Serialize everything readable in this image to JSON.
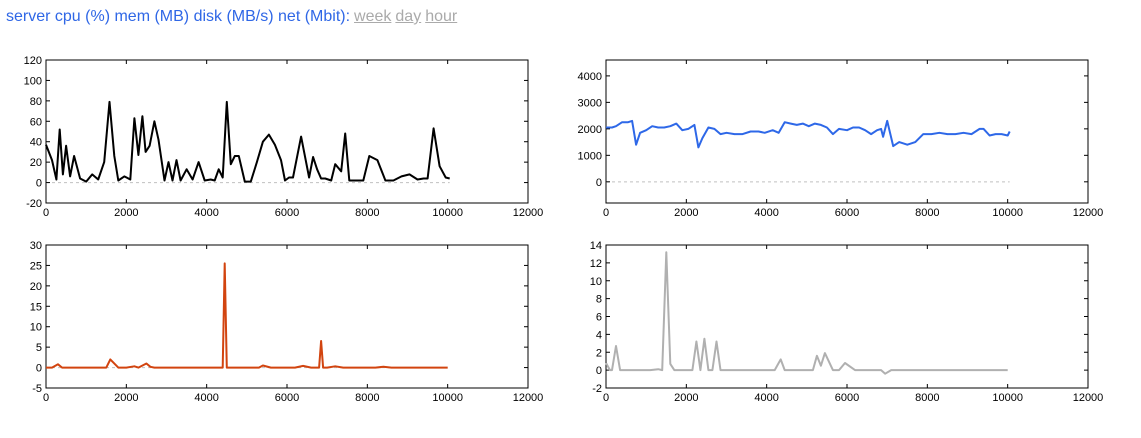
{
  "header": {
    "title": "server cpu (%) mem (MB) disk (MB/s) net (Mbit):",
    "links": [
      "week",
      "day",
      "hour"
    ]
  },
  "chart_data": [
    {
      "type": "line",
      "name": "cpu",
      "color": "#000000",
      "xlim": [
        0,
        12000
      ],
      "ylim": [
        -20,
        120
      ],
      "xticks": [
        0,
        2000,
        4000,
        6000,
        8000,
        10000,
        12000
      ],
      "yticks": [
        -20,
        0,
        20,
        40,
        60,
        80,
        100,
        120
      ],
      "zero_line": true,
      "x": [
        0,
        150,
        260,
        340,
        420,
        500,
        600,
        700,
        850,
        1000,
        1150,
        1300,
        1450,
        1580,
        1700,
        1800,
        1950,
        2100,
        2200,
        2300,
        2400,
        2480,
        2580,
        2700,
        2800,
        2950,
        3050,
        3150,
        3250,
        3350,
        3500,
        3650,
        3800,
        3950,
        4100,
        4200,
        4300,
        4400,
        4500,
        4600,
        4700,
        4800,
        4950,
        5100,
        5250,
        5400,
        5550,
        5700,
        5850,
        5950,
        6050,
        6150,
        6350,
        6550,
        6650,
        6750,
        6850,
        6950,
        7100,
        7200,
        7350,
        7450,
        7550,
        7750,
        7900,
        8050,
        8250,
        8450,
        8650,
        8850,
        9050,
        9250,
        9400,
        9500,
        9650,
        9800,
        9950,
        10050
      ],
      "y": [
        37,
        22,
        3,
        52,
        8,
        36,
        6,
        26,
        4,
        1,
        8,
        3,
        20,
        79,
        26,
        2,
        6,
        3,
        63,
        27,
        65,
        30,
        36,
        60,
        42,
        2,
        20,
        2,
        22,
        2,
        13,
        3,
        20,
        2,
        3,
        2,
        13,
        5,
        79,
        18,
        26,
        26,
        1,
        1,
        20,
        40,
        47,
        37,
        22,
        2,
        5,
        5,
        45,
        5,
        25,
        13,
        4,
        4,
        2,
        18,
        11,
        48,
        2,
        2,
        2,
        26,
        22,
        2,
        2,
        6,
        8,
        3,
        4,
        4,
        53,
        16,
        5,
        4
      ],
      "note_x": [
        0,
        150,
        260,
        340,
        420,
        500,
        600,
        700,
        850,
        1000,
        1150,
        1300,
        1450,
        1580,
        1700,
        1800,
        1950,
        2100,
        2200,
        2300,
        2400,
        2480,
        2580,
        2700,
        2800,
        2950,
        3050,
        3150,
        3250,
        3350,
        3500,
        3650,
        3800,
        3950,
        4100,
        4200,
        4300,
        4400,
        4500,
        4600,
        4700,
        4800,
        4950,
        5100,
        5250,
        5400,
        5550,
        5700,
        5850,
        5950,
        6050,
        6150,
        6350,
        6550,
        6650,
        6750,
        6850,
        6950,
        7100,
        7200,
        7350,
        7450,
        7550,
        7750,
        7900,
        8050,
        8250,
        8450,
        8650,
        8850,
        9050,
        9250,
        9400,
        9500,
        9650,
        9800,
        9950,
        10050
      ]
    },
    {
      "type": "line",
      "name": "mem",
      "color": "#2e68e8",
      "xlim": [
        0,
        12000
      ],
      "ylim": [
        -800,
        4600
      ],
      "xticks": [
        0,
        2000,
        4000,
        6000,
        8000,
        10000,
        12000
      ],
      "yticks": [
        0,
        1000,
        2000,
        3000,
        4000
      ],
      "zero_line": true,
      "x": [
        0,
        150,
        250,
        400,
        550,
        650,
        750,
        850,
        1000,
        1150,
        1300,
        1450,
        1600,
        1750,
        1900,
        2050,
        2200,
        2300,
        2400,
        2550,
        2700,
        2850,
        3000,
        3200,
        3400,
        3600,
        3800,
        3950,
        4150,
        4300,
        4450,
        4600,
        4750,
        4900,
        5050,
        5200,
        5350,
        5500,
        5650,
        5800,
        6000,
        6150,
        6300,
        6450,
        6600,
        6750,
        6850,
        6900,
        7000,
        7150,
        7300,
        7500,
        7700,
        7900,
        8100,
        8300,
        8500,
        8700,
        8900,
        9100,
        9300,
        9400,
        9550,
        9700,
        9850,
        10000,
        10050
      ],
      "y": [
        2050,
        2050,
        2100,
        2250,
        2250,
        2300,
        1400,
        1850,
        1950,
        2100,
        2050,
        2050,
        2100,
        2200,
        1950,
        2000,
        2150,
        1300,
        1650,
        2050,
        2000,
        1800,
        1850,
        1800,
        1800,
        1900,
        1900,
        1850,
        1950,
        1850,
        2250,
        2200,
        2150,
        2200,
        2100,
        2200,
        2150,
        2050,
        1800,
        2000,
        1950,
        2050,
        2050,
        1950,
        1800,
        1950,
        2000,
        1700,
        2300,
        1350,
        1500,
        1400,
        1500,
        1800,
        1800,
        1850,
        1800,
        1800,
        1850,
        1800,
        2000,
        2000,
        1750,
        1800,
        1800,
        1750,
        1900
      ]
    },
    {
      "type": "line",
      "name": "disk",
      "color": "#d2440f",
      "xlim": [
        0,
        12000
      ],
      "ylim": [
        -5,
        30
      ],
      "xticks": [
        0,
        2000,
        4000,
        6000,
        8000,
        10000,
        12000
      ],
      "yticks": [
        -5,
        0,
        5,
        10,
        15,
        20,
        25,
        30
      ],
      "zero_line": true,
      "x": [
        0,
        150,
        300,
        400,
        600,
        800,
        1000,
        1200,
        1400,
        1500,
        1600,
        1800,
        2000,
        2200,
        2300,
        2500,
        2600,
        2700,
        2900,
        3100,
        3300,
        3500,
        3700,
        3900,
        4100,
        4300,
        4400,
        4450,
        4500,
        4700,
        4900,
        5100,
        5300,
        5400,
        5600,
        5800,
        6000,
        6200,
        6400,
        6600,
        6700,
        6800,
        6850,
        6900,
        7000,
        7200,
        7400,
        7600,
        7800,
        8000,
        8200,
        8400,
        8600,
        8800,
        9000,
        9200,
        9400,
        9600,
        9800,
        10000
      ],
      "y": [
        0,
        0,
        0.8,
        0,
        0,
        0,
        0,
        0,
        0,
        0,
        2,
        0,
        0,
        0.3,
        0,
        1,
        0.2,
        0,
        0,
        0,
        0,
        0,
        0,
        0,
        0,
        0,
        0,
        25.5,
        0,
        0,
        0,
        0,
        0,
        0.5,
        0,
        0,
        0,
        0,
        0.4,
        0,
        0,
        0,
        6.5,
        0,
        0,
        0.3,
        0,
        0,
        0,
        0,
        0,
        0.2,
        0,
        0,
        0,
        0,
        0,
        0,
        0,
        0
      ]
    },
    {
      "type": "line",
      "name": "net",
      "color": "#b0b0b0",
      "xlim": [
        0,
        12000
      ],
      "ylim": [
        -2,
        14
      ],
      "xticks": [
        0,
        2000,
        4000,
        6000,
        8000,
        10000,
        12000
      ],
      "yticks": [
        -2,
        0,
        2,
        4,
        6,
        8,
        10,
        12,
        14
      ],
      "zero_line": false,
      "x": [
        0,
        100,
        150,
        250,
        350,
        500,
        700,
        900,
        1100,
        1300,
        1400,
        1500,
        1600,
        1700,
        1800,
        2000,
        2150,
        2250,
        2350,
        2450,
        2550,
        2650,
        2750,
        2850,
        3000,
        3200,
        3400,
        3600,
        3800,
        4000,
        4200,
        4350,
        4450,
        4600,
        4800,
        5000,
        5150,
        5250,
        5350,
        5450,
        5650,
        5800,
        5950,
        6200,
        6500,
        6700,
        6850,
        6950,
        7100,
        7300,
        7600,
        8000,
        8500,
        9000,
        9500,
        10000
      ],
      "y": [
        0.8,
        0,
        0,
        2.7,
        0,
        0,
        0,
        0,
        0,
        0.1,
        0,
        13.2,
        0.7,
        0,
        0,
        0,
        0,
        3.2,
        0,
        3.5,
        0,
        0,
        3.2,
        0,
        0,
        0,
        0,
        0,
        0,
        0,
        0,
        1.2,
        0,
        0,
        0,
        0,
        0,
        1.6,
        0.5,
        1.9,
        0,
        0,
        0.8,
        0,
        0,
        0,
        0,
        -0.4,
        0,
        0,
        0,
        0,
        0,
        0,
        0,
        0
      ]
    }
  ]
}
